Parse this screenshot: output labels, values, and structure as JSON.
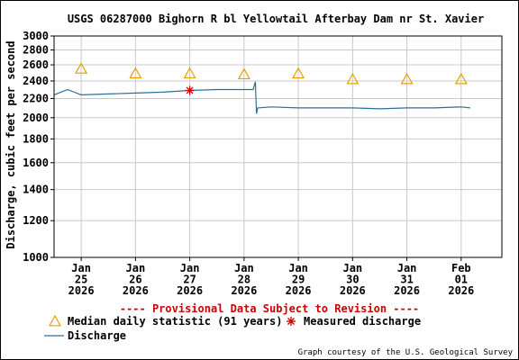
{
  "chart_data": {
    "type": "line",
    "title": "USGS 06287000 Bighorn R bl Yellowtail Afterbay Dam nr St. Xavier",
    "ylabel": "Discharge, cubic feet per second",
    "y_scale": "log",
    "ylim": [
      1000,
      3000
    ],
    "yticks": [
      1000,
      1200,
      1400,
      1600,
      1800,
      2000,
      2200,
      2400,
      2600,
      2800,
      3000
    ],
    "xlim": [
      "2026-01-24T12:00",
      "2026-02-01T18:00"
    ],
    "x_ticks": [
      {
        "date": "2026-01-25",
        "label": [
          "Jan",
          "25",
          "2026"
        ]
      },
      {
        "date": "2026-01-26",
        "label": [
          "Jan",
          "26",
          "2026"
        ]
      },
      {
        "date": "2026-01-27",
        "label": [
          "Jan",
          "27",
          "2026"
        ]
      },
      {
        "date": "2026-01-28",
        "label": [
          "Jan",
          "28",
          "2026"
        ]
      },
      {
        "date": "2026-01-29",
        "label": [
          "Jan",
          "29",
          "2026"
        ]
      },
      {
        "date": "2026-01-30",
        "label": [
          "Jan",
          "30",
          "2026"
        ]
      },
      {
        "date": "2026-01-31",
        "label": [
          "Jan",
          "31",
          "2026"
        ]
      },
      {
        "date": "2026-02-01",
        "label": [
          "Feb",
          "01",
          "2026"
        ]
      }
    ],
    "grid": true,
    "provisional_note": "---- Provisional Data Subject to Revision ----",
    "series": [
      {
        "name": "Median daily statistic (91 years)",
        "marker": "triangle",
        "color": "#e8a000",
        "points": [
          {
            "x": "2026-01-25",
            "y": 2550
          },
          {
            "x": "2026-01-26",
            "y": 2490
          },
          {
            "x": "2026-01-27",
            "y": 2490
          },
          {
            "x": "2026-01-28",
            "y": 2480
          },
          {
            "x": "2026-01-29",
            "y": 2490
          },
          {
            "x": "2026-01-30",
            "y": 2420
          },
          {
            "x": "2026-01-31",
            "y": 2420
          },
          {
            "x": "2026-02-01",
            "y": 2420
          }
        ]
      },
      {
        "name": "Measured discharge",
        "marker": "asterisk",
        "color": "#cc0000",
        "points": [
          {
            "x": "2026-01-27T00:00",
            "y": 2290
          }
        ]
      },
      {
        "name": "Discharge",
        "line": true,
        "color": "#2a6e99",
        "points": [
          {
            "x": "2026-01-24T12:00",
            "y": 2240
          },
          {
            "x": "2026-01-24T18:00",
            "y": 2300
          },
          {
            "x": "2026-01-25T00:00",
            "y": 2240
          },
          {
            "x": "2026-01-25T12:00",
            "y": 2250
          },
          {
            "x": "2026-01-26T00:00",
            "y": 2260
          },
          {
            "x": "2026-01-26T12:00",
            "y": 2270
          },
          {
            "x": "2026-01-27T00:00",
            "y": 2290
          },
          {
            "x": "2026-01-27T12:00",
            "y": 2300
          },
          {
            "x": "2026-01-28T00:00",
            "y": 2300
          },
          {
            "x": "2026-01-28T04:00",
            "y": 2300
          },
          {
            "x": "2026-01-28T05:00",
            "y": 2390
          },
          {
            "x": "2026-01-28T05:30",
            "y": 2040
          },
          {
            "x": "2026-01-28T06:00",
            "y": 2100
          },
          {
            "x": "2026-01-28T12:00",
            "y": 2110
          },
          {
            "x": "2026-01-29T00:00",
            "y": 2100
          },
          {
            "x": "2026-01-29T12:00",
            "y": 2100
          },
          {
            "x": "2026-01-30T00:00",
            "y": 2100
          },
          {
            "x": "2026-01-30T12:00",
            "y": 2090
          },
          {
            "x": "2026-01-31T00:00",
            "y": 2100
          },
          {
            "x": "2026-01-31T12:00",
            "y": 2100
          },
          {
            "x": "2026-02-01T00:00",
            "y": 2110
          },
          {
            "x": "2026-02-01T04:00",
            "y": 2100
          }
        ]
      }
    ],
    "legend": [
      {
        "label": "Median daily statistic (91 years)",
        "marker": "triangle"
      },
      {
        "label": "Measured discharge",
        "marker": "asterisk"
      },
      {
        "label": "Discharge",
        "marker": "line"
      }
    ],
    "legend_placement": "bottom-left",
    "credit": "Graph courtesy of the U.S. Geological Survey"
  },
  "colors": {
    "plot_border": "#000000",
    "grid": "#c8c8c8",
    "median": "#e8a000",
    "measured": "#cc0000",
    "discharge": "#2a6e99",
    "provisional": "#cc0000"
  }
}
